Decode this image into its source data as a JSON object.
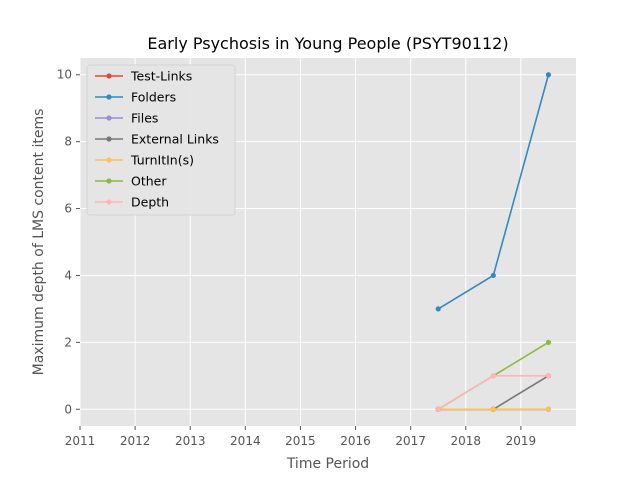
{
  "chart_data": {
    "type": "line",
    "title": "Early Psychosis in Young People (PSYT90112)",
    "xlabel": "Time Period",
    "ylabel": "Maximum depth of LMS content items",
    "xlim": [
      2011,
      2020
    ],
    "ylim": [
      -0.5,
      10.5
    ],
    "xticks": [
      "2011",
      "2012",
      "2013",
      "2014",
      "2015",
      "2016",
      "2017",
      "2018",
      "2019"
    ],
    "yticks": [
      "0",
      "2",
      "4",
      "6",
      "8",
      "10"
    ],
    "grid": true,
    "legend_position": "upper-left",
    "series": [
      {
        "name": "Test-Links",
        "color": "#E24A33",
        "x": [
          2017.5,
          2018.5,
          2019.5
        ],
        "y": [
          0,
          0,
          0
        ]
      },
      {
        "name": "Folders",
        "color": "#348ABD",
        "x": [
          2017.5,
          2018.5,
          2019.5
        ],
        "y": [
          3,
          4,
          10
        ]
      },
      {
        "name": "Files",
        "color": "#988ED5",
        "x": [
          2017.5,
          2018.5,
          2019.5
        ],
        "y": [
          0,
          0,
          0
        ]
      },
      {
        "name": "External Links",
        "color": "#777777",
        "x": [
          2017.5,
          2018.5,
          2019.5
        ],
        "y": [
          0,
          0,
          1
        ]
      },
      {
        "name": "TurnItIn(s)",
        "color": "#FBC15E",
        "x": [
          2017.5,
          2018.5,
          2019.5
        ],
        "y": [
          0,
          0,
          0
        ]
      },
      {
        "name": "Other",
        "color": "#8EBA42",
        "x": [
          2017.5,
          2018.5,
          2019.5
        ],
        "y": [
          0,
          1,
          2
        ]
      },
      {
        "name": "Depth",
        "color": "#FFB5B8",
        "x": [
          2017.5,
          2018.5,
          2019.5
        ],
        "y": [
          0,
          1,
          1
        ]
      }
    ]
  }
}
